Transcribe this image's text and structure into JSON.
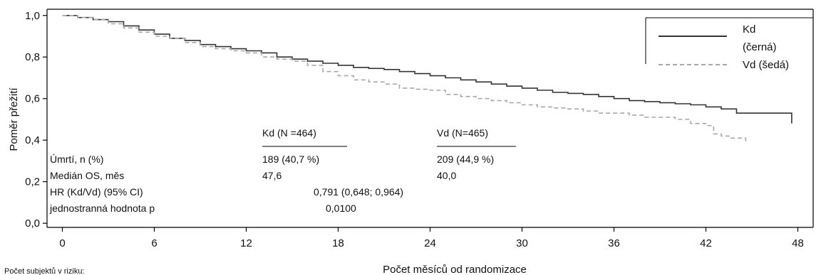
{
  "chart_data": {
    "type": "line",
    "title": "",
    "xlabel": "Počet měsíců od randomizace",
    "ylabel": "Poměr přežití",
    "xlim": [
      -1,
      49
    ],
    "ylim": [
      -0.02,
      1.03
    ],
    "xticks": [
      "0",
      "6",
      "12",
      "18",
      "24",
      "30",
      "36",
      "42",
      "48"
    ],
    "yticks": [
      "0,0",
      "0,2",
      "0,4",
      "0,6",
      "0,8",
      "1,0"
    ],
    "grid": false,
    "legend_position": "top-right",
    "legend": [
      {
        "label_line1": "Kd",
        "label_line2": "(černá)",
        "color": "#333333",
        "style": "solid"
      },
      {
        "label_line1": "Vd (šedá)",
        "label_line2": "",
        "color": "#a8a8a8",
        "style": "dashed"
      }
    ],
    "series": [
      {
        "name": "Kd",
        "color": "#333333",
        "style": "solid",
        "x": [
          0,
          1,
          2,
          3,
          4,
          5,
          6,
          7,
          8,
          9,
          10,
          11,
          12,
          13,
          14,
          15,
          16,
          17,
          18,
          19,
          20,
          21,
          22,
          23,
          24,
          25,
          26,
          27,
          28,
          29,
          30,
          31,
          32,
          33,
          34,
          35,
          36,
          37,
          38,
          39,
          40,
          41,
          42,
          43,
          44,
          45,
          46,
          47,
          47.6
        ],
        "y": [
          1.0,
          0.99,
          0.98,
          0.97,
          0.95,
          0.93,
          0.91,
          0.89,
          0.88,
          0.86,
          0.85,
          0.84,
          0.83,
          0.82,
          0.8,
          0.79,
          0.78,
          0.77,
          0.76,
          0.75,
          0.745,
          0.74,
          0.73,
          0.72,
          0.71,
          0.7,
          0.69,
          0.68,
          0.67,
          0.66,
          0.65,
          0.64,
          0.63,
          0.625,
          0.62,
          0.61,
          0.6,
          0.59,
          0.585,
          0.58,
          0.575,
          0.57,
          0.56,
          0.55,
          0.53,
          0.53,
          0.53,
          0.53,
          0.48
        ]
      },
      {
        "name": "Vd",
        "color": "#a8a8a8",
        "style": "dashed",
        "x": [
          0,
          1,
          2,
          3,
          4,
          5,
          6,
          7,
          8,
          9,
          10,
          11,
          12,
          13,
          14,
          15,
          16,
          17,
          18,
          19,
          20,
          21,
          22,
          23,
          24,
          25,
          26,
          27,
          28,
          29,
          30,
          31,
          32,
          33,
          34,
          35,
          36,
          37,
          38,
          39,
          40,
          41,
          42,
          42.5,
          43,
          43.5,
          44,
          44.6
        ],
        "y": [
          1.0,
          0.99,
          0.98,
          0.96,
          0.94,
          0.92,
          0.9,
          0.89,
          0.87,
          0.85,
          0.84,
          0.83,
          0.82,
          0.8,
          0.79,
          0.78,
          0.76,
          0.73,
          0.71,
          0.69,
          0.68,
          0.67,
          0.65,
          0.645,
          0.64,
          0.62,
          0.61,
          0.6,
          0.59,
          0.58,
          0.57,
          0.56,
          0.555,
          0.55,
          0.54,
          0.53,
          0.53,
          0.52,
          0.51,
          0.51,
          0.5,
          0.48,
          0.47,
          0.43,
          0.42,
          0.41,
          0.41,
          0.39
        ]
      }
    ],
    "annotations": {
      "header_kd": "Kd (N =464)",
      "header_vd": "Vd (N=465)",
      "rows": [
        {
          "label": "Úmrtí, n (%)",
          "kd": "189 (40,7 %)",
          "vd": "209 (44,9 %)"
        },
        {
          "label": "Medián OS, měs",
          "kd": "47,6",
          "vd": "40,0"
        },
        {
          "label": "HR (Kd/Vd) (95% CI)",
          "center": "0,791 (0,648; 0,964)"
        },
        {
          "label": "jednostranná hodnota p",
          "center": "0,0100"
        }
      ]
    },
    "footnote": "Počet subjektů v riziku:"
  }
}
